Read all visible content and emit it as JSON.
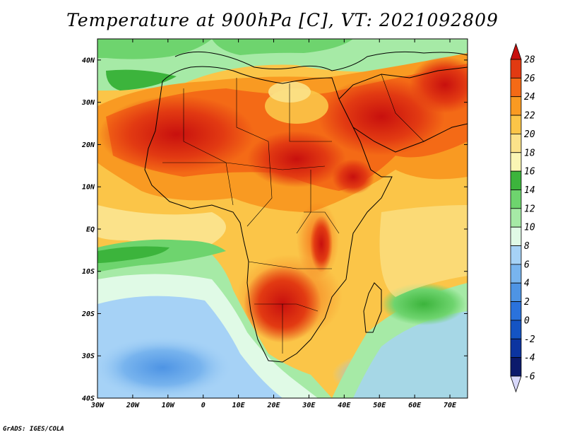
{
  "title": "Temperature at 900hPa [C], VT: 2021092809",
  "footer": "GrADS: IGES/COLA",
  "map": {
    "lon_range": [
      -30,
      75
    ],
    "lat_range": [
      -40,
      45
    ],
    "x_ticks": [
      {
        "lon": -30,
        "label": "30W"
      },
      {
        "lon": -20,
        "label": "20W"
      },
      {
        "lon": -10,
        "label": "10W"
      },
      {
        "lon": 0,
        "label": "0"
      },
      {
        "lon": 10,
        "label": "10E"
      },
      {
        "lon": 20,
        "label": "20E"
      },
      {
        "lon": 30,
        "label": "30E"
      },
      {
        "lon": 40,
        "label": "40E"
      },
      {
        "lon": 50,
        "label": "50E"
      },
      {
        "lon": 60,
        "label": "60E"
      },
      {
        "lon": 70,
        "label": "70E"
      }
    ],
    "y_ticks": [
      {
        "lat": 40,
        "label": "40N"
      },
      {
        "lat": 30,
        "label": "30N"
      },
      {
        "lat": 20,
        "label": "20N"
      },
      {
        "lat": 10,
        "label": "10N"
      },
      {
        "lat": 0,
        "label": "EQ"
      },
      {
        "lat": -10,
        "label": "10S"
      },
      {
        "lat": -20,
        "label": "20S"
      },
      {
        "lat": -30,
        "label": "30S"
      },
      {
        "lat": -40,
        "label": "40S"
      }
    ]
  },
  "colorbar": {
    "levels": [
      "28",
      "26",
      "24",
      "22",
      "20",
      "18",
      "16",
      "14",
      "12",
      "10",
      "8",
      "6",
      "4",
      "2",
      "0",
      "-2",
      "-4",
      "-6"
    ],
    "colors": [
      "#c8100e",
      "#e23a12",
      "#f46a16",
      "#f99a22",
      "#fbc548",
      "#fbe28a",
      "#faf6b4",
      "#3cb43c",
      "#6ed46e",
      "#a6eaa6",
      "#e0fae6",
      "#a6d2f6",
      "#78b4ee",
      "#4e94e4",
      "#2a72dc",
      "#1454c4",
      "#0c34a0",
      "#0c1a6c",
      "#d8d8fa"
    ]
  }
}
